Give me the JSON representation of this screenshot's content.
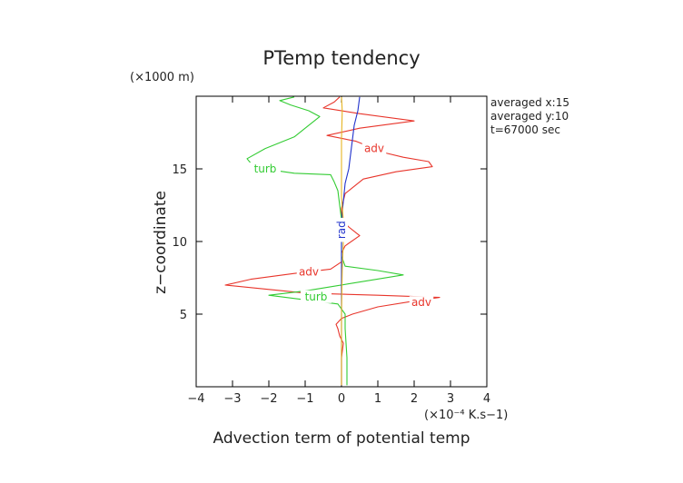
{
  "chart_data": {
    "type": "line",
    "title": "PTemp tendency",
    "xlabel": "Advection term of potential temp",
    "x_unit": "(×10⁻⁴ K.s−1)",
    "ylabel": "z−coordinate",
    "y_unit": "(×1000 m)",
    "xlim": [
      -4,
      4
    ],
    "ylim": [
      0,
      20
    ],
    "x_ticks": [
      -4,
      -3,
      -2,
      -1,
      0,
      1,
      2,
      3,
      4
    ],
    "x_tick_labels": [
      "−4",
      "−3",
      "−2",
      "−1",
      "0",
      "1",
      "2",
      "3",
      "4"
    ],
    "y_ticks": [
      5,
      10,
      15
    ],
    "y_tick_labels": [
      "5",
      "10",
      "15"
    ],
    "info": [
      "averaged  x:15",
      "averaged  y:10",
      "t=67000 sec"
    ],
    "series": [
      {
        "name": "adv",
        "color": "#e8352b",
        "points": [
          [
            0.0,
            0.1
          ],
          [
            0.0,
            2.0
          ],
          [
            0.05,
            3.0
          ],
          [
            -0.05,
            3.5
          ],
          [
            -0.1,
            4.0
          ],
          [
            -0.15,
            4.3
          ],
          [
            0.0,
            4.7
          ],
          [
            0.3,
            5.0
          ],
          [
            1.0,
            5.5
          ],
          [
            2.0,
            5.9
          ],
          [
            2.7,
            6.15
          ],
          [
            1.0,
            6.3
          ],
          [
            -1.0,
            6.45
          ],
          [
            -3.2,
            7.0
          ],
          [
            -2.5,
            7.4
          ],
          [
            -1.3,
            7.8
          ],
          [
            -0.3,
            8.1
          ],
          [
            0.0,
            8.6
          ],
          [
            0.0,
            9.2
          ],
          [
            0.1,
            9.7
          ],
          [
            0.5,
            10.4
          ],
          [
            0.2,
            11.0
          ],
          [
            0.0,
            11.5
          ],
          [
            0.0,
            12.3
          ],
          [
            0.05,
            12.8
          ],
          [
            0.1,
            13.3
          ],
          [
            0.3,
            13.7
          ],
          [
            0.6,
            14.3
          ],
          [
            1.5,
            14.8
          ],
          [
            2.5,
            15.15
          ],
          [
            2.4,
            15.5
          ],
          [
            1.7,
            15.8
          ],
          [
            1.2,
            16.1
          ],
          [
            0.8,
            16.5
          ],
          [
            0.4,
            16.9
          ],
          [
            -0.4,
            17.3
          ],
          [
            0.5,
            17.8
          ],
          [
            2.0,
            18.3
          ],
          [
            0.5,
            18.8
          ],
          [
            -0.5,
            19.2
          ],
          [
            -0.2,
            19.6
          ],
          [
            -0.05,
            19.95
          ]
        ],
        "labels": [
          {
            "text": "adv",
            "at": [
              0.9,
              16.4
            ]
          },
          {
            "text": "adv",
            "at": [
              -0.9,
              7.9
            ]
          },
          {
            "text": "adv",
            "at": [
              2.2,
              5.8
            ]
          }
        ]
      },
      {
        "name": "turb",
        "color": "#33cc33",
        "points": [
          [
            0.15,
            0.1
          ],
          [
            0.15,
            2.0
          ],
          [
            0.1,
            4.0
          ],
          [
            0.1,
            5.0
          ],
          [
            -0.1,
            5.7
          ],
          [
            -2.0,
            6.3
          ],
          [
            -1.0,
            6.6
          ],
          [
            -0.5,
            6.8
          ],
          [
            1.7,
            7.7
          ],
          [
            1.0,
            8.0
          ],
          [
            0.1,
            8.3
          ],
          [
            0.0,
            9.0
          ],
          [
            0.0,
            10.0
          ],
          [
            0.0,
            11.5
          ],
          [
            -0.05,
            12.5
          ],
          [
            -0.1,
            13.5
          ],
          [
            -0.2,
            14.1
          ],
          [
            -0.3,
            14.6
          ],
          [
            -1.3,
            14.7
          ],
          [
            -2.4,
            15.1
          ],
          [
            -2.6,
            15.7
          ],
          [
            -2.1,
            16.4
          ],
          [
            -1.3,
            17.2
          ],
          [
            -1.0,
            17.8
          ],
          [
            -0.8,
            18.2
          ],
          [
            -0.6,
            18.6
          ],
          [
            -0.9,
            19.0
          ],
          [
            -1.4,
            19.4
          ],
          [
            -1.7,
            19.7
          ],
          [
            -1.3,
            19.95
          ]
        ],
        "labels": [
          {
            "text": "turb",
            "at": [
              -2.1,
              15.0
            ]
          },
          {
            "text": "turb",
            "at": [
              -0.7,
              6.2
            ]
          }
        ]
      },
      {
        "name": "rad",
        "color": "#2233cc",
        "points": [
          [
            0.0,
            0.1
          ],
          [
            0.0,
            5.0
          ],
          [
            0.0,
            10.0
          ],
          [
            0.02,
            12.0
          ],
          [
            0.1,
            14.0
          ],
          [
            0.2,
            15.0
          ],
          [
            0.25,
            16.0
          ],
          [
            0.3,
            17.0
          ],
          [
            0.35,
            18.0
          ],
          [
            0.45,
            19.0
          ],
          [
            0.5,
            19.95
          ]
        ],
        "labels": [
          {
            "text": "rad",
            "at": [
              0.0,
              10.8
            ],
            "rotate": -90
          }
        ]
      },
      {
        "name": "",
        "color": "#e6b422",
        "points": [
          [
            0.0,
            0.1
          ],
          [
            0.0,
            5.0
          ],
          [
            0.02,
            8.0
          ],
          [
            0.05,
            10.0
          ],
          [
            0.05,
            11.5
          ],
          [
            0.0,
            13.0
          ],
          [
            0.0,
            15.0
          ],
          [
            0.0,
            17.0
          ],
          [
            0.02,
            19.0
          ],
          [
            0.0,
            19.95
          ]
        ],
        "labels": []
      }
    ]
  }
}
